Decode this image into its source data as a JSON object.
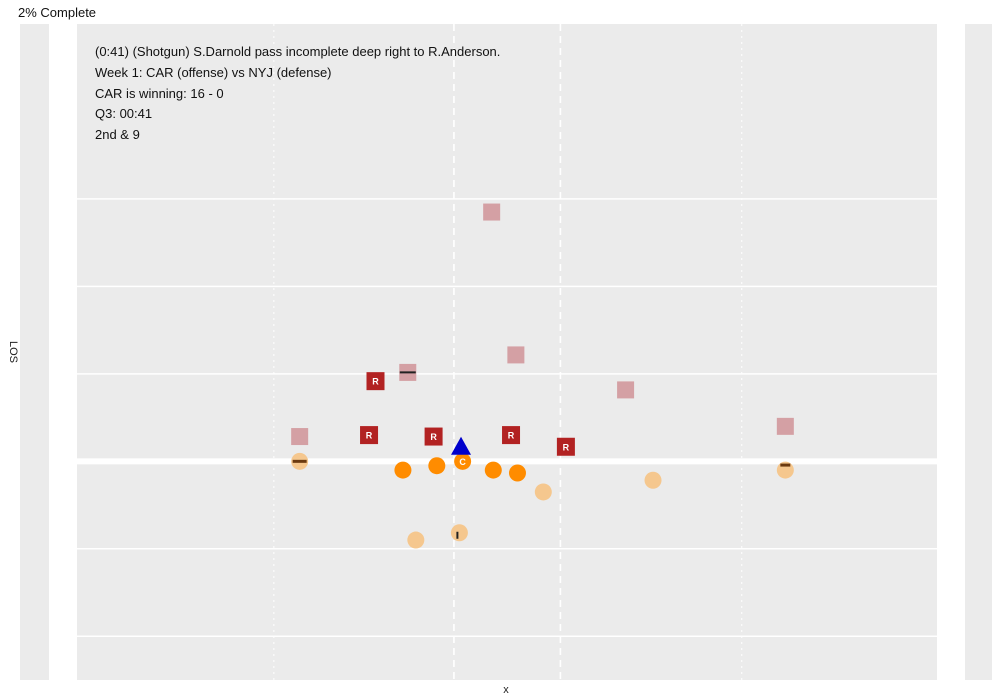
{
  "progress_label": "2% Complete",
  "play_info": [
    "(0:41) (Shotgun) S.Darnold pass incomplete deep right to R.Anderson.",
    "Week 1: CAR (offense) vs NYJ (defense)",
    "CAR is winning: 16 - 0",
    "Q3: 00:41",
    "2nd & 9"
  ],
  "colors": {
    "panel_bg": "#ebebeb",
    "field_bg": "#ffffff",
    "grid_major": "#ffffff",
    "defense": "#d4a0a4",
    "defense_rusher": "#b22222",
    "offense_line": "#ff8c00",
    "offense_skill": "#f5c78e",
    "ball": "#0000cc",
    "marker": "#222222"
  },
  "chart_data": {
    "type": "scatter",
    "title": "",
    "xlabel": "x",
    "ylabel": "LOS",
    "xlim": [
      0,
      53.3
    ],
    "ylim": [
      -15,
      30
    ],
    "line_of_scrimmage_y": 0,
    "hash_lines_x": [
      23.36,
      29.96
    ],
    "number_lines_x": [
      12.2,
      41.2
    ],
    "major_gridlines_y": [
      -12,
      -6,
      6,
      12,
      18
    ],
    "series": [
      {
        "name": "",
        "role": "defense",
        "points": [
          {
            "x": 25.7,
            "y": 17.1
          },
          {
            "x": 27.2,
            "y": 7.3
          },
          {
            "x": 20.5,
            "y": 6.1
          },
          {
            "x": 34.0,
            "y": 4.9
          },
          {
            "x": 13.8,
            "y": 1.7
          },
          {
            "x": 43.9,
            "y": 2.4
          }
        ]
      },
      {
        "name": "",
        "role": "pass-rusher",
        "label": "R",
        "points": [
          {
            "x": 18.5,
            "y": 5.5
          },
          {
            "x": 18.1,
            "y": 1.8
          },
          {
            "x": 22.1,
            "y": 1.7
          },
          {
            "x": 26.9,
            "y": 1.8
          },
          {
            "x": 30.3,
            "y": 1.0
          }
        ]
      },
      {
        "name": "",
        "role": "offensive-line",
        "center_label": "C",
        "points": [
          {
            "x": 20.2,
            "y": -0.6
          },
          {
            "x": 22.3,
            "y": -0.3
          },
          {
            "x": 23.9,
            "y": 0.0
          },
          {
            "x": 25.8,
            "y": -0.6
          },
          {
            "x": 27.3,
            "y": -0.8
          }
        ]
      },
      {
        "name": "",
        "role": "skill",
        "points": [
          {
            "x": 13.8,
            "y": 0.0
          },
          {
            "x": 28.9,
            "y": -2.1
          },
          {
            "x": 35.7,
            "y": -1.3
          },
          {
            "x": 43.9,
            "y": -0.6
          },
          {
            "x": 21.0,
            "y": -5.4
          },
          {
            "x": 23.7,
            "y": -4.9
          }
        ]
      },
      {
        "name": "",
        "role": "ball",
        "points": [
          {
            "x": 23.8,
            "y": 1.0
          }
        ]
      }
    ]
  }
}
